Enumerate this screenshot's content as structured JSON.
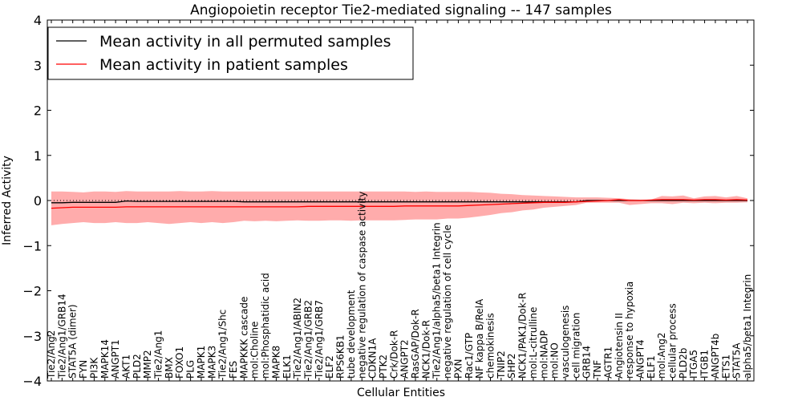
{
  "chart_data": {
    "type": "line",
    "title": "Angiopoietin receptor Tie2-mediated signaling -- 147 samples",
    "xlabel": "Cellular Entities",
    "ylabel": "Inferred Activity",
    "ylim": [
      -4,
      4
    ],
    "yticks": [
      "4",
      "3",
      "2",
      "1",
      "0",
      "−1",
      "−2",
      "−3",
      "−4"
    ],
    "ytick_values": [
      4,
      3,
      2,
      1,
      0,
      -1,
      -2,
      -3,
      -4
    ],
    "legend_position": "top-left",
    "colors": {
      "permuted": "#000000",
      "patient": "#ff0000",
      "band": "#ff8080",
      "zero": "#000000"
    },
    "categories": [
      "Tie2/Ang2",
      "Tie2/Ang1/GRB14",
      "STAT5A (dimer)",
      "FYN",
      "PI3K",
      "MAPK14",
      "ANGPT1",
      "AKT1",
      "PLD2",
      "MMP2",
      "Tie2/Ang1",
      "BMX",
      "FOXO1",
      "PLG",
      "MAPK1",
      "MAPK3",
      "Tie2/Ang1/Shc",
      "FES",
      "MAPKKK cascade",
      "mol:Choline",
      "mol:Phosphatidic acid",
      "MAPK8",
      "ELK1",
      "Tie2/Ang1/ABIN2",
      "Tie2/Ang1/GRB2",
      "Tie2/Ang1/GRB7",
      "ELF2",
      "RPS6KB1",
      "tube development",
      "negative regulation of caspase activity",
      "CDKN1A",
      "PTK2",
      "Crk/Dok-R",
      "ANGPT2",
      "RasGAP/Dok-R",
      "NCK1/Dok-R",
      "Tie2/Ang1/alpha5/beta1 Integrin",
      "negative regulation of cell cycle",
      "PXN",
      "Rac1/GTP",
      "NF kappa B/RelA",
      "chemokinesis",
      "TNIP2",
      "SHP2",
      "NCK1/PAK1/Dok-R",
      "mol:L-citrulline",
      "mol:NADP",
      "mol:NO",
      "vasculogenesis",
      "cell migration",
      "GRB14",
      "TNF",
      "AGTR1",
      "Angiotensin II",
      "response to hypoxia",
      "ANGPT4",
      "ELF1",
      "mol:Ang2",
      "cellular process",
      "PLD2b",
      "ITGA5",
      "ITGB1",
      "ANGPT4b",
      "ETS1",
      "STAT5A",
      "alpha5/beta1 Integrin"
    ],
    "series": [
      {
        "name": "Mean activity in all permuted samples",
        "values": [
          -0.05,
          -0.05,
          -0.04,
          -0.04,
          -0.04,
          -0.04,
          -0.04,
          -0.01,
          -0.02,
          -0.02,
          -0.02,
          -0.02,
          -0.02,
          -0.02,
          -0.02,
          -0.02,
          -0.02,
          -0.02,
          -0.03,
          -0.03,
          -0.03,
          -0.03,
          -0.03,
          -0.03,
          -0.03,
          -0.03,
          -0.03,
          -0.03,
          -0.03,
          -0.03,
          -0.03,
          -0.03,
          -0.03,
          -0.03,
          -0.03,
          -0.03,
          -0.03,
          -0.03,
          -0.03,
          -0.03,
          -0.03,
          -0.03,
          -0.03,
          -0.03,
          -0.03,
          -0.03,
          -0.03,
          -0.03,
          -0.03,
          -0.03,
          0,
          0,
          0,
          0,
          0,
          0,
          0,
          0,
          0,
          0,
          0,
          0,
          0,
          0,
          0,
          0
        ]
      },
      {
        "name": "Mean activity in patient samples",
        "values": [
          -0.17,
          -0.16,
          -0.15,
          -0.15,
          -0.15,
          -0.15,
          -0.15,
          -0.14,
          -0.14,
          -0.14,
          -0.14,
          -0.14,
          -0.14,
          -0.14,
          -0.14,
          -0.14,
          -0.14,
          -0.14,
          -0.14,
          -0.14,
          -0.14,
          -0.14,
          -0.14,
          -0.14,
          -0.13,
          -0.13,
          -0.13,
          -0.13,
          -0.13,
          -0.13,
          -0.13,
          -0.13,
          -0.13,
          -0.12,
          -0.12,
          -0.12,
          -0.12,
          -0.12,
          -0.12,
          -0.11,
          -0.1,
          -0.09,
          -0.08,
          -0.07,
          -0.06,
          -0.05,
          -0.04,
          -0.04,
          -0.04,
          -0.03,
          -0.02,
          -0.01,
          0,
          0.02,
          0,
          0,
          0.01,
          0.02,
          0.02,
          0.02,
          0.01,
          0.02,
          0.02,
          0.01,
          0.02,
          0.01
        ]
      }
    ],
    "band": {
      "name": "patient spread",
      "upper": [
        0.2,
        0.2,
        0.19,
        0.18,
        0.2,
        0.2,
        0.19,
        0.21,
        0.2,
        0.2,
        0.2,
        0.2,
        0.21,
        0.2,
        0.2,
        0.21,
        0.2,
        0.2,
        0.2,
        0.2,
        0.2,
        0.2,
        0.2,
        0.2,
        0.2,
        0.2,
        0.2,
        0.2,
        0.2,
        0.2,
        0.2,
        0.2,
        0.2,
        0.2,
        0.19,
        0.2,
        0.19,
        0.19,
        0.19,
        0.19,
        0.18,
        0.17,
        0.15,
        0.14,
        0.12,
        0.11,
        0.1,
        0.09,
        0.08,
        0.07,
        0.07,
        0.07,
        0.06,
        0.05,
        0.03,
        0.02,
        0.02,
        0.1,
        0.09,
        0.11,
        0.05,
        0.09,
        0.1,
        0.07,
        0.1,
        0.05
      ],
      "lower": [
        -0.55,
        -0.52,
        -0.5,
        -0.48,
        -0.5,
        -0.5,
        -0.48,
        -0.5,
        -0.5,
        -0.48,
        -0.5,
        -0.52,
        -0.5,
        -0.48,
        -0.5,
        -0.48,
        -0.5,
        -0.48,
        -0.45,
        -0.46,
        -0.45,
        -0.46,
        -0.45,
        -0.44,
        -0.45,
        -0.45,
        -0.44,
        -0.44,
        -0.45,
        -0.44,
        -0.44,
        -0.44,
        -0.44,
        -0.43,
        -0.42,
        -0.42,
        -0.42,
        -0.4,
        -0.4,
        -0.38,
        -0.35,
        -0.32,
        -0.28,
        -0.26,
        -0.22,
        -0.2,
        -0.16,
        -0.14,
        -0.12,
        -0.1,
        -0.05,
        -0.05,
        -0.05,
        -0.05,
        -0.1,
        -0.08,
        -0.06,
        -0.06,
        -0.08,
        -0.05,
        -0.06,
        -0.05,
        -0.06,
        -0.05,
        -0.05,
        -0.04
      ]
    }
  }
}
